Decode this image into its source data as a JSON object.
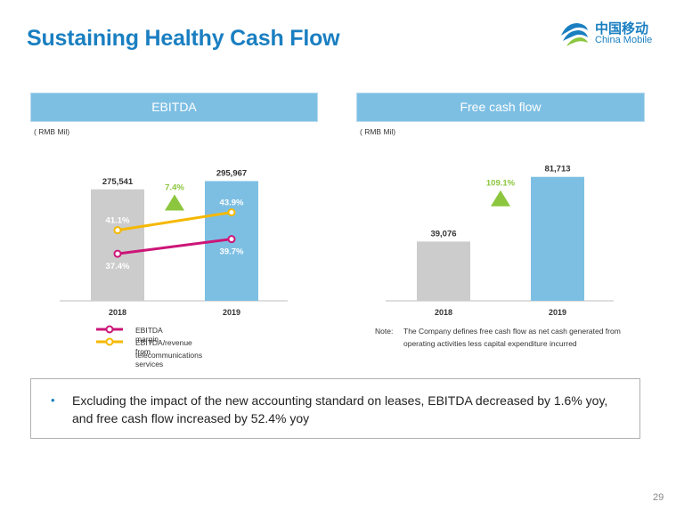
{
  "title": "Sustaining Healthy Cash Flow",
  "logo": {
    "cn": "中国移动",
    "en": "China Mobile"
  },
  "page_number": "29",
  "colors": {
    "title": "#1a7fc1",
    "header_bg": "#7dbfe3",
    "bar_2018": "#cccccc",
    "bar_2019": "#7dbfe3",
    "growth": "#8cc63f",
    "margin_line": "#cc1577",
    "revenue_line": "#f5b800"
  },
  "ebitda_panel": {
    "header": "EBITDA",
    "unit": "( RMB Mil)"
  },
  "fcf_panel": {
    "header": "Free cash flow",
    "unit": "( RMB Mil)"
  },
  "legend": {
    "items": [
      {
        "label": "EBITDA margin",
        "icon": "pink-line-marker-icon"
      },
      {
        "label": "EBITDA/revenue from",
        "continuation": "telecommunications services",
        "icon": "yellow-line-marker-icon"
      }
    ]
  },
  "note": {
    "prefix": "Note:",
    "text": "The Company defines free cash flow as net cash generated from operating activities less capital expenditure incurred"
  },
  "bullet": "Excluding the impact of the new accounting standard on leases, EBITDA decreased by 1.6% yoy, and free cash flow increased by 52.4% yoy",
  "chart_data": [
    {
      "type": "bar",
      "title": "EBITDA",
      "categories": [
        "2018",
        "2019"
      ],
      "values": [
        275541,
        295967
      ],
      "value_labels": [
        "275,541",
        "295,967"
      ],
      "growth_label": "7.4%",
      "ylim": [
        0,
        330000
      ],
      "lines": [
        {
          "name": "EBITDA margin",
          "values": [
            37.4,
            39.7
          ],
          "labels": [
            "37.4%",
            "39.7%"
          ],
          "color": "#cc1577"
        },
        {
          "name": "EBITDA/revenue from telecommunications services",
          "values": [
            41.1,
            43.9
          ],
          "labels": [
            "41.1%",
            "43.9%"
          ],
          "color": "#f5b800"
        }
      ],
      "line_ylim": [
        30,
        50
      ]
    },
    {
      "type": "bar",
      "title": "Free cash flow",
      "categories": [
        "2018",
        "2019"
      ],
      "values": [
        39076,
        81713
      ],
      "value_labels": [
        "39,076",
        "81,713"
      ],
      "growth_label": "109.1%",
      "ylim": [
        0,
        88000
      ]
    }
  ]
}
